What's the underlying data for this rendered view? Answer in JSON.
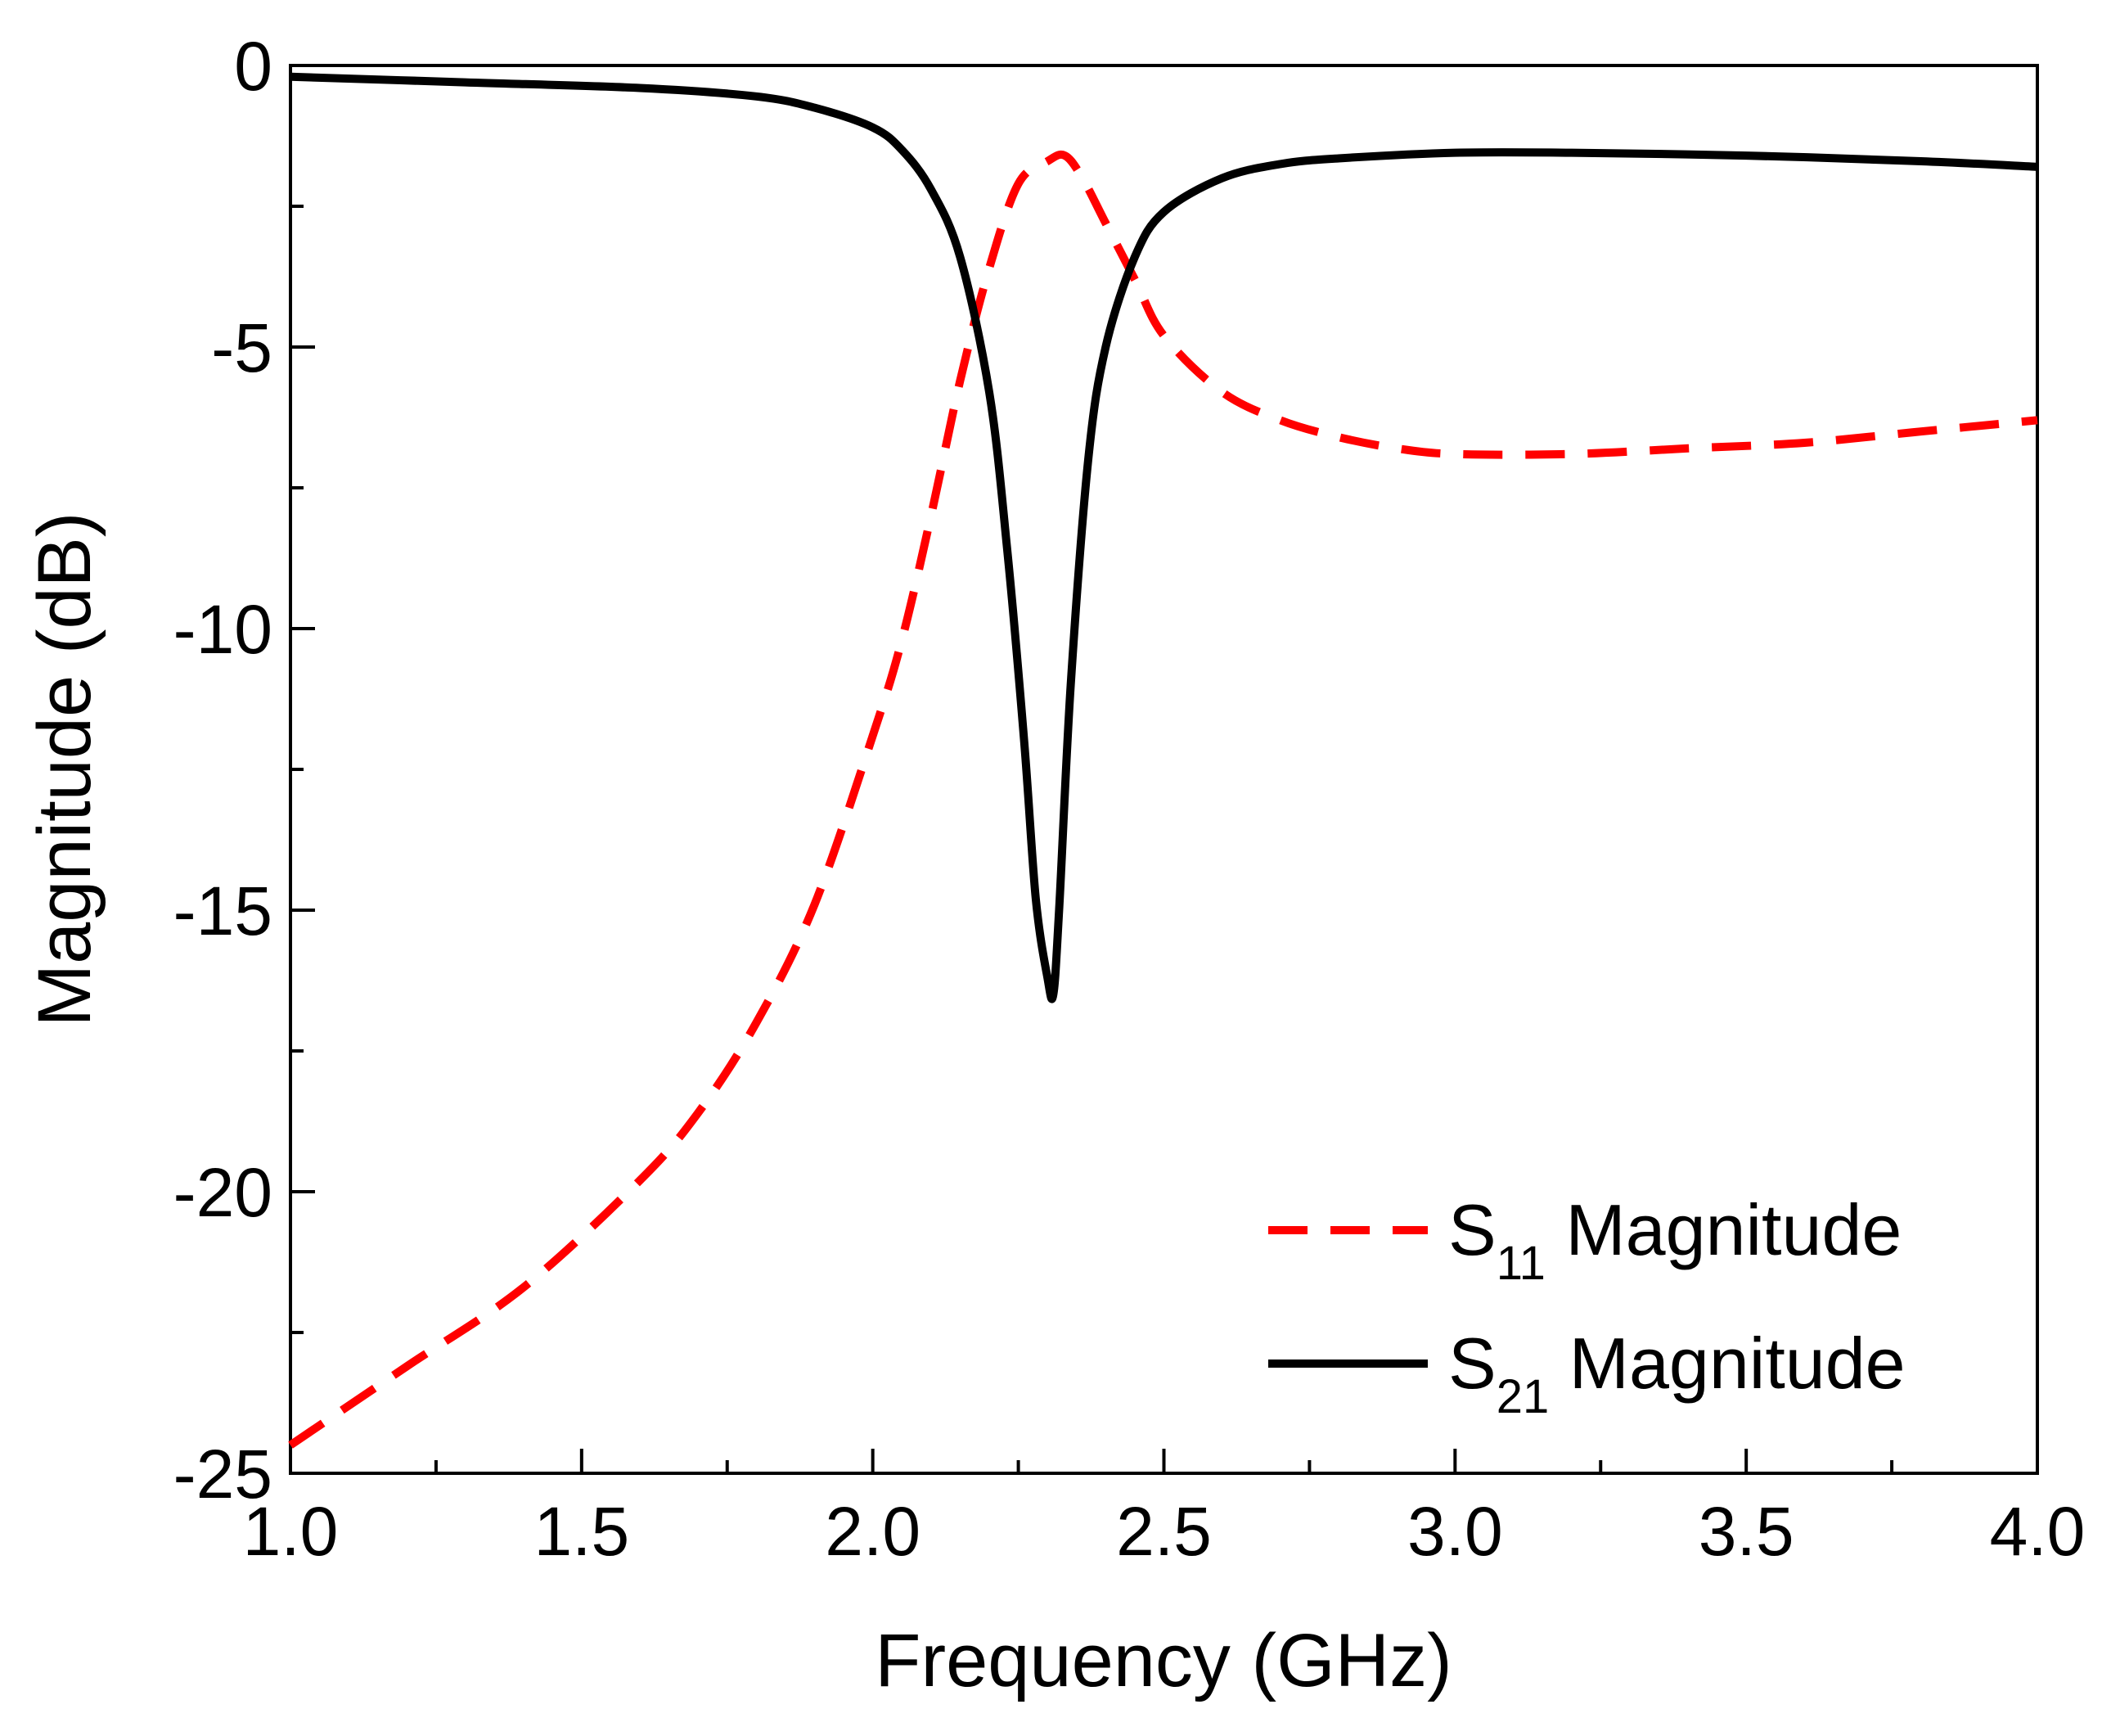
{
  "chart_data": {
    "type": "line",
    "title": "",
    "xlabel": "Frequency (GHz)",
    "ylabel": "Magnitude (dB)",
    "xlim": [
      1.0,
      4.0
    ],
    "ylim": [
      -25,
      0
    ],
    "xticks": [
      1.0,
      1.5,
      2.0,
      2.5,
      3.0,
      3.5,
      4.0
    ],
    "xtick_labels": [
      "1.0",
      "1.5",
      "2.0",
      "2.5",
      "3.0",
      "3.5",
      "4.0"
    ],
    "yticks": [
      0,
      -5,
      -10,
      -15,
      -20,
      -25
    ],
    "ytick_labels": [
      "0",
      "-5",
      "-10",
      "-15",
      "-20",
      "-25"
    ],
    "grid": false,
    "legend_position": "bottom-right",
    "series": [
      {
        "name": "S11 Magnitude",
        "label_main": "S",
        "label_sub": "11",
        "label_rest": " Magnitude",
        "color": "#ff0000",
        "style": "dashed",
        "x": [
          1.0,
          1.2,
          1.4,
          1.6,
          1.7,
          1.8,
          1.9,
          2.0,
          2.05,
          2.1,
          2.15,
          2.2,
          2.25,
          2.3,
          2.33,
          2.36,
          2.4,
          2.45,
          2.5,
          2.6,
          2.7,
          2.8,
          2.9,
          3.0,
          3.2,
          3.4,
          3.6,
          3.8,
          4.0
        ],
        "y": [
          -24.5,
          -23.1,
          -21.7,
          -19.8,
          -18.6,
          -17.0,
          -14.9,
          -11.9,
          -10.2,
          -8.0,
          -5.6,
          -3.6,
          -2.1,
          -1.7,
          -1.6,
          -2.0,
          -2.8,
          -3.8,
          -4.8,
          -5.8,
          -6.3,
          -6.6,
          -6.8,
          -6.9,
          -6.9,
          -6.8,
          -6.7,
          -6.5,
          -6.3
        ]
      },
      {
        "name": "S21 Magnitude",
        "label_main": "S",
        "label_sub": "21",
        "label_rest": " Magnitude",
        "color": "#000000",
        "style": "solid",
        "x": [
          1.0,
          1.3,
          1.6,
          1.8,
          1.9,
          2.0,
          2.05,
          2.1,
          2.15,
          2.2,
          2.23,
          2.26,
          2.28,
          2.3,
          2.31,
          2.32,
          2.34,
          2.37,
          2.4,
          2.45,
          2.5,
          2.6,
          2.7,
          2.8,
          3.0,
          3.2,
          3.5,
          3.8,
          4.0
        ],
        "y": [
          -0.2,
          -0.3,
          -0.4,
          -0.55,
          -0.75,
          -1.1,
          -1.5,
          -2.2,
          -3.4,
          -5.8,
          -8.5,
          -12.0,
          -14.8,
          -16.2,
          -16.5,
          -15.0,
          -11.0,
          -7.0,
          -5.0,
          -3.4,
          -2.6,
          -2.0,
          -1.75,
          -1.65,
          -1.55,
          -1.55,
          -1.6,
          -1.7,
          -1.8
        ]
      }
    ]
  }
}
